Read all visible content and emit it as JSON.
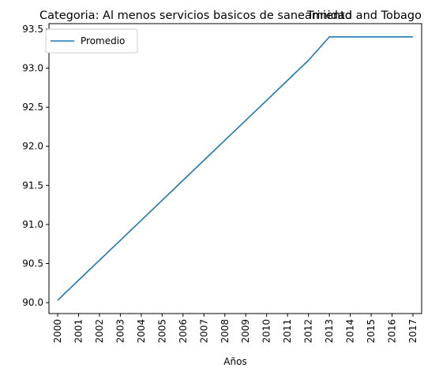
{
  "chart_data": {
    "type": "line",
    "title_left": "Categoria: Al menos servicios basicos de saneamiento",
    "title_right": "Trinidad and Tobago",
    "xlabel": "Años",
    "ylabel": "",
    "x": [
      "2000",
      "2001",
      "2002",
      "2003",
      "2004",
      "2005",
      "2006",
      "2007",
      "2008",
      "2009",
      "2010",
      "2011",
      "2012",
      "2013",
      "2014",
      "2015",
      "2016",
      "2017"
    ],
    "series": [
      {
        "name": "Promedio",
        "color": "#1f77b4",
        "values": [
          90.03,
          90.286,
          90.542,
          90.797,
          91.053,
          91.309,
          91.565,
          91.821,
          92.077,
          92.332,
          92.588,
          92.844,
          93.1,
          93.4,
          93.4,
          93.4,
          93.4,
          93.4
        ]
      }
    ],
    "yticks": [
      "90.0",
      "90.5",
      "91.0",
      "91.5",
      "92.0",
      "92.5",
      "93.0",
      "93.5"
    ],
    "ylim": [
      89.86,
      93.57
    ],
    "grid": false,
    "legend_position": "upper left"
  }
}
